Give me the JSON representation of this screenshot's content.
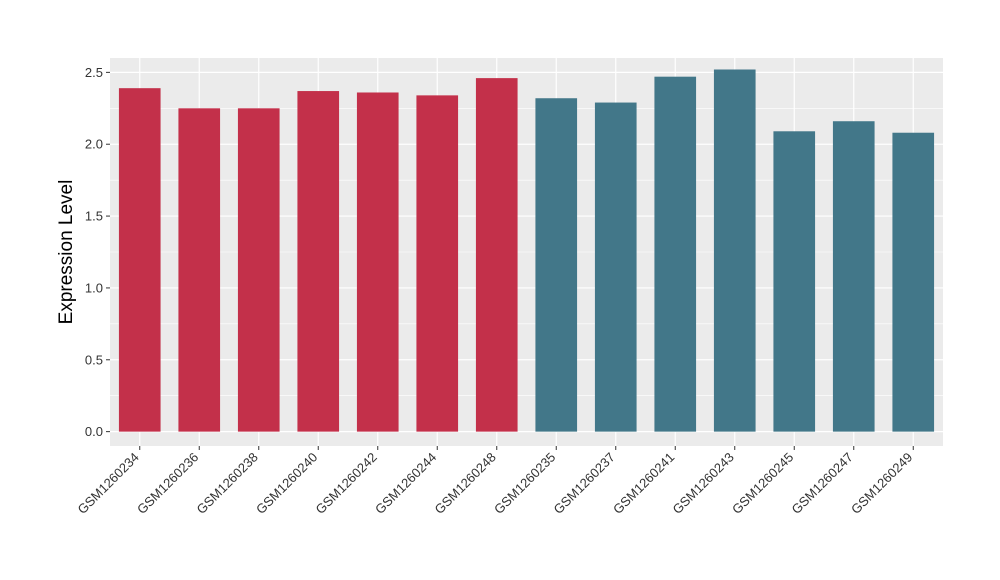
{
  "chart_data": {
    "type": "bar",
    "title": "",
    "xlabel": "",
    "ylabel": "Expression Level",
    "ylim": [
      -0.1,
      2.6
    ],
    "yticks": [
      "0.0",
      "0.5",
      "1.0",
      "1.5",
      "2.0",
      "2.5"
    ],
    "ytick_values": [
      0.0,
      0.5,
      1.0,
      1.5,
      2.0,
      2.5
    ],
    "grid": true,
    "legend": "none",
    "categories": [
      "GSM1260234",
      "GSM1260236",
      "GSM1260238",
      "GSM1260240",
      "GSM1260242",
      "GSM1260244",
      "GSM1260248",
      "GSM1260235",
      "GSM1260237",
      "GSM1260241",
      "GSM1260243",
      "GSM1260245",
      "GSM1260247",
      "GSM1260249"
    ],
    "values": [
      2.39,
      2.25,
      2.25,
      2.37,
      2.36,
      2.34,
      2.46,
      2.32,
      2.29,
      2.47,
      2.52,
      2.09,
      2.16,
      2.08
    ],
    "group_colors": [
      "#c3304a",
      "#c3304a",
      "#c3304a",
      "#c3304a",
      "#c3304a",
      "#c3304a",
      "#c3304a",
      "#427789",
      "#427789",
      "#427789",
      "#427789",
      "#427789",
      "#427789",
      "#427789"
    ],
    "panel_background": "#ebebeb",
    "grid_color": "#ffffff"
  }
}
